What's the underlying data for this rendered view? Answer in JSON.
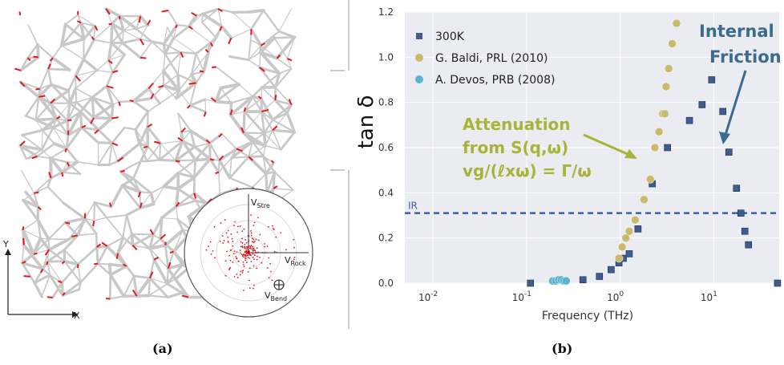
{
  "panel_a": {
    "axis_y": "Y",
    "axis_x": "X",
    "vec_stretch": "Stre",
    "vec_rock": "Rock",
    "vec_bend": "Bend",
    "vec_symbol": "V",
    "caption": "(a)",
    "colors": {
      "network": "#c8c8c8",
      "arrows": "#e8151b",
      "axes": "#222222"
    }
  },
  "panel_b": {
    "caption": "(b)",
    "colors": {
      "s300k": "#3d5d8f",
      "baldi": "#c8bb6d",
      "devos": "#5ab3d0",
      "ir_line": "#3a5fa8",
      "annotation_green": "#a8b437",
      "annotation_blue": "#3b6b8f",
      "background": "#ebebf2",
      "grid": "#ffffff"
    }
  },
  "chart_data": {
    "type": "scatter",
    "xlabel": "Frequency (THz)",
    "ylabel": "tan δ",
    "xscale": "log",
    "xlim": [
      0.005,
      50
    ],
    "ylim": [
      0,
      1.2
    ],
    "xticks": [
      {
        "value": 0.01,
        "base": "10",
        "exp": "-2"
      },
      {
        "value": 0.1,
        "base": "10",
        "exp": "-1"
      },
      {
        "value": 1,
        "base": "10",
        "exp": "0"
      },
      {
        "value": 10,
        "base": "10",
        "exp": "1"
      }
    ],
    "yticks": [
      "0.0",
      "0.2",
      "0.4",
      "0.6",
      "0.8",
      "1.0",
      "1.2"
    ],
    "grid": true,
    "legend_position": "top-left",
    "series": [
      {
        "name": "300K",
        "marker": "square",
        "x": [
          0.11,
          0.4,
          0.6,
          0.8,
          0.97,
          1.08,
          1.25,
          1.55,
          2.2,
          3.2,
          5.5,
          7.5,
          9.5,
          12.5,
          14.5,
          17.5,
          19.5,
          21.5,
          23.5,
          48
        ],
        "y": [
          0.0,
          0.015,
          0.03,
          0.06,
          0.09,
          0.11,
          0.13,
          0.24,
          0.44,
          0.6,
          0.72,
          0.79,
          0.9,
          0.76,
          0.58,
          0.42,
          0.31,
          0.23,
          0.17,
          0.0
        ]
      },
      {
        "name": "G. Baldi, PRL (2010)",
        "marker": "circle",
        "x": [
          0.97,
          1.05,
          1.15,
          1.25,
          1.45,
          1.8,
          2.1,
          2.35,
          2.6,
          2.85,
          3.0,
          3.1,
          3.3,
          3.6,
          4.0
        ],
        "y": [
          0.11,
          0.16,
          0.2,
          0.23,
          0.28,
          0.37,
          0.46,
          0.6,
          0.67,
          0.75,
          0.75,
          0.87,
          0.95,
          1.06,
          1.15
        ]
      },
      {
        "name": "A. Devos, PRB (2008)",
        "marker": "circle",
        "x": [
          0.19,
          0.205,
          0.22,
          0.235,
          0.25,
          0.265
        ],
        "y": [
          0.01,
          0.01,
          0.015,
          0.015,
          0.01,
          0.01
        ]
      }
    ],
    "reference_line": {
      "label": "IR",
      "y": 0.31
    },
    "annotations": [
      {
        "lines": [
          "Attenuation",
          "from S(q,ω)",
          "vg/(ℓxω) = Γ/ω"
        ]
      },
      {
        "lines": [
          "Internal",
          "Friction"
        ]
      }
    ]
  }
}
